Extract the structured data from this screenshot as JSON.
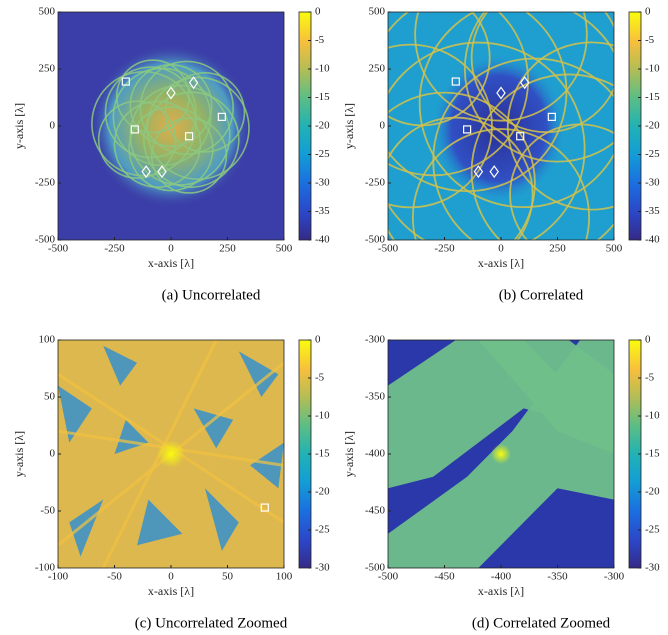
{
  "chart_data": [
    {
      "type": "scatter",
      "title": "(a) Uncorrelated",
      "xlabel": "x-axis [λ]",
      "ylabel": "y-axis [λ]",
      "xlim": [
        -500,
        500
      ],
      "ylim": [
        -500,
        500
      ],
      "xticks": [
        -500,
        -250,
        0,
        250,
        500
      ],
      "yticks": [
        -500,
        -250,
        0,
        250,
        500
      ],
      "clim": [
        -40,
        0
      ],
      "cticks": [
        0,
        -5,
        -10,
        -15,
        -20,
        -25,
        -30,
        -35,
        -40
      ],
      "series": [
        {
          "marker": "square",
          "color": "#ffffff",
          "x": [
            -200,
            -160,
            80,
            225
          ],
          "y": [
            195,
            -15,
            -45,
            40
          ]
        },
        {
          "marker": "diamond",
          "color": "#ffffff",
          "x": [
            100,
            0,
            -110,
            -40
          ],
          "y": [
            190,
            145,
            -200,
            -200
          ]
        }
      ]
    },
    {
      "type": "scatter",
      "title": "(b) Correlated",
      "xlabel": "x-axis [λ]",
      "ylabel": "y-axis [λ]",
      "xlim": [
        -500,
        500
      ],
      "ylim": [
        -500,
        500
      ],
      "xticks": [
        -500,
        -250,
        0,
        250,
        500
      ],
      "yticks": [
        -500,
        -250,
        0,
        250,
        500
      ],
      "clim": [
        -40,
        0
      ],
      "cticks": [
        0,
        -5,
        -10,
        -15,
        -20,
        -25,
        -30,
        -35,
        -40
      ],
      "series": [
        {
          "marker": "square",
          "color": "#ffffff",
          "x": [
            -200,
            -150,
            85,
            225
          ],
          "y": [
            195,
            -15,
            -45,
            40
          ]
        },
        {
          "marker": "diamond",
          "color": "#ffffff",
          "x": [
            105,
            0,
            -100,
            -30
          ],
          "y": [
            190,
            145,
            -200,
            -200
          ]
        }
      ]
    },
    {
      "type": "scatter",
      "title": "(c) Uncorrelated Zoomed",
      "xlabel": "x-axis [λ]",
      "ylabel": "y-axis [λ]",
      "xlim": [
        -100,
        100
      ],
      "ylim": [
        -100,
        100
      ],
      "xticks": [
        -100,
        -50,
        0,
        50,
        100
      ],
      "yticks": [
        -100,
        -50,
        0,
        50,
        100
      ],
      "clim": [
        -30,
        0
      ],
      "cticks": [
        0,
        -5,
        -10,
        -15,
        -20,
        -25,
        -30
      ],
      "series": [
        {
          "marker": "square",
          "color": "#ffffff",
          "x": [
            83
          ],
          "y": [
            -47
          ]
        }
      ]
    },
    {
      "type": "scatter",
      "title": "(d) Correlated Zoomed",
      "xlabel": "x-axis [λ]",
      "ylabel": "y-axis [λ]",
      "xlim": [
        -500,
        -300
      ],
      "ylim": [
        -500,
        -300
      ],
      "xticks": [
        -500,
        -450,
        -400,
        -350,
        -300
      ],
      "yticks": [
        -500,
        -450,
        -400,
        -350,
        -300
      ],
      "clim": [
        -30,
        0
      ],
      "cticks": [
        0,
        -5,
        -10,
        -15,
        -20,
        -25,
        -30
      ]
    }
  ]
}
